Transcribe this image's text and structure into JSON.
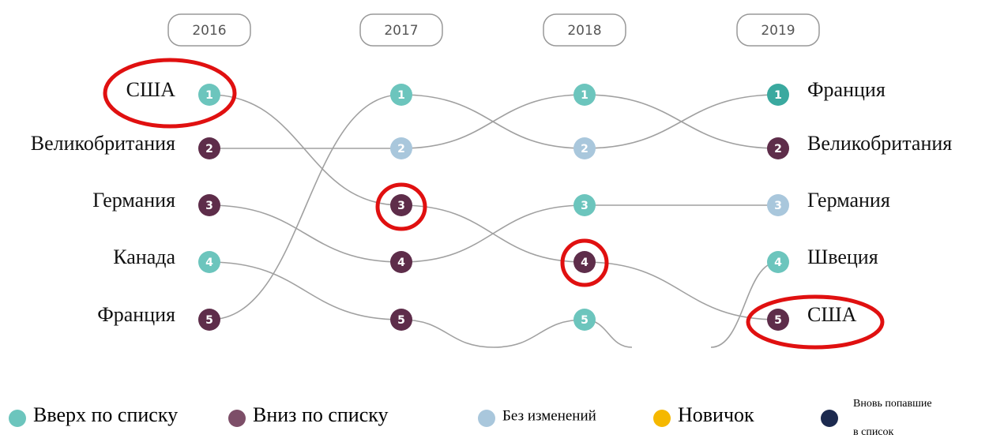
{
  "years": [
    "2016",
    "2017",
    "2018",
    "2019"
  ],
  "left_labels": [
    "США",
    "Великобритания",
    "Германия",
    "Канада",
    "Франция"
  ],
  "right_labels": [
    "Франция",
    "Великобритания",
    "Германия",
    "Швеция",
    "США"
  ],
  "columns": [
    [
      {
        "rank": 1,
        "color": "#6cc5bd"
      },
      {
        "rank": 2,
        "color": "#5e2d4a"
      },
      {
        "rank": 3,
        "color": "#5e2d4a"
      },
      {
        "rank": 4,
        "color": "#6cc5bd"
      },
      {
        "rank": 5,
        "color": "#5e2d4a"
      }
    ],
    [
      {
        "rank": 1,
        "color": "#6cc5bd"
      },
      {
        "rank": 2,
        "color": "#a9c7dc"
      },
      {
        "rank": 3,
        "color": "#5e2d4a"
      },
      {
        "rank": 4,
        "color": "#5e2d4a"
      },
      {
        "rank": 5,
        "color": "#5e2d4a"
      }
    ],
    [
      {
        "rank": 1,
        "color": "#6cc5bd"
      },
      {
        "rank": 2,
        "color": "#a9c7dc"
      },
      {
        "rank": 3,
        "color": "#6cc5bd"
      },
      {
        "rank": 4,
        "color": "#5e2d4a"
      },
      {
        "rank": 5,
        "color": "#6cc5bd"
      }
    ],
    [
      {
        "rank": 1,
        "color": "#3aa99f"
      },
      {
        "rank": 2,
        "color": "#5e2d4a"
      },
      {
        "rank": 3,
        "color": "#a9c7dc"
      },
      {
        "rank": 4,
        "color": "#6cc5bd"
      },
      {
        "rank": 5,
        "color": "#5e2d4a"
      }
    ]
  ],
  "legend": [
    {
      "label": "Вверх по списку",
      "color": "#6cc5bd"
    },
    {
      "label": "Вниз по списку",
      "color": "#7d4e68"
    },
    {
      "label": "Без изменений",
      "color": "#a9c7dc"
    },
    {
      "label": "Новичок",
      "color": "#f5b800"
    },
    {
      "label": "Вновь попавшие в список",
      "color": "#1c2a4f"
    }
  ]
}
